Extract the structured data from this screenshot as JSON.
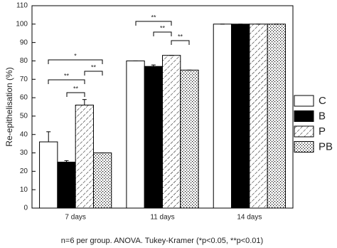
{
  "chart_data": {
    "type": "bar",
    "ylabel": "Re-epithelisation (%)",
    "xlabel": "n=6 per group. ANOVA. Tukey-Kramer (*p<0.05, **p<0.01)",
    "categories": [
      "7 days",
      "11 days",
      "14 days"
    ],
    "series": [
      {
        "name": "C",
        "color": "#ffffff",
        "pattern": "none",
        "values": [
          36,
          80,
          100
        ],
        "errors": [
          5.5,
          0,
          0
        ]
      },
      {
        "name": "B",
        "color": "#000000",
        "pattern": "none",
        "values": [
          25,
          77,
          100
        ],
        "errors": [
          0.8,
          0.8,
          0
        ]
      },
      {
        "name": "P",
        "color": "#ffffff",
        "pattern": "diagonal",
        "values": [
          56,
          83,
          100
        ],
        "errors": [
          3,
          0,
          0
        ]
      },
      {
        "name": "PB",
        "color": "#ffffff",
        "pattern": "dots",
        "values": [
          30,
          75,
          100
        ],
        "errors": [
          0,
          0,
          0
        ]
      }
    ],
    "ylim": [
      0,
      110
    ],
    "yticks": [
      0,
      10,
      20,
      30,
      40,
      50,
      60,
      70,
      80,
      90,
      100,
      110
    ],
    "legend": "right",
    "annotations": [
      "*",
      "**",
      "**",
      "**",
      "**",
      "**",
      "**"
    ]
  }
}
